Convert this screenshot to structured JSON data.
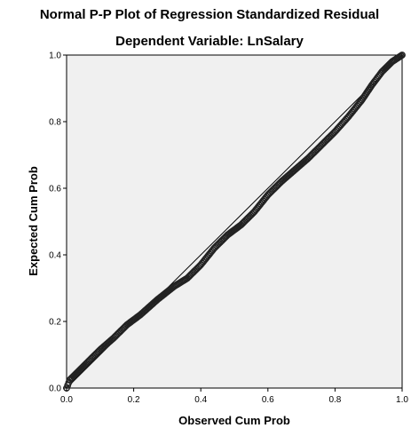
{
  "chart_data": {
    "type": "scatter",
    "title": "Normal P-P Plot of Regression Standardized Residual",
    "subtitle": "Dependent Variable: LnSalary",
    "xlabel": "Observed Cum Prob",
    "ylabel": "Expected Cum Prob",
    "xlim": [
      0.0,
      1.0
    ],
    "ylim": [
      0.0,
      1.0
    ],
    "xticks": [
      "0.0",
      "0.2",
      "0.4",
      "0.6",
      "0.8",
      "1.0"
    ],
    "yticks": [
      "0.0",
      "0.2",
      "0.4",
      "0.6",
      "0.8",
      "1.0"
    ],
    "reference_line": [
      [
        0,
        0
      ],
      [
        1,
        1
      ]
    ],
    "grid": false,
    "legend": "none",
    "background_color": "#f0f0f0",
    "point_color": "#222222",
    "curve": [
      {
        "x": 0.0,
        "y": 0.0
      },
      {
        "x": 0.01,
        "y": 0.025
      },
      {
        "x": 0.03,
        "y": 0.045
      },
      {
        "x": 0.06,
        "y": 0.075
      },
      {
        "x": 0.1,
        "y": 0.115
      },
      {
        "x": 0.14,
        "y": 0.15
      },
      {
        "x": 0.18,
        "y": 0.19
      },
      {
        "x": 0.22,
        "y": 0.22
      },
      {
        "x": 0.27,
        "y": 0.265
      },
      {
        "x": 0.32,
        "y": 0.305
      },
      {
        "x": 0.36,
        "y": 0.33
      },
      {
        "x": 0.4,
        "y": 0.37
      },
      {
        "x": 0.44,
        "y": 0.42
      },
      {
        "x": 0.48,
        "y": 0.46
      },
      {
        "x": 0.52,
        "y": 0.49
      },
      {
        "x": 0.56,
        "y": 0.53
      },
      {
        "x": 0.6,
        "y": 0.58
      },
      {
        "x": 0.64,
        "y": 0.62
      },
      {
        "x": 0.68,
        "y": 0.655
      },
      {
        "x": 0.72,
        "y": 0.69
      },
      {
        "x": 0.76,
        "y": 0.73
      },
      {
        "x": 0.8,
        "y": 0.77
      },
      {
        "x": 0.84,
        "y": 0.815
      },
      {
        "x": 0.88,
        "y": 0.865
      },
      {
        "x": 0.91,
        "y": 0.91
      },
      {
        "x": 0.94,
        "y": 0.95
      },
      {
        "x": 0.97,
        "y": 0.98
      },
      {
        "x": 1.0,
        "y": 1.0
      }
    ]
  }
}
